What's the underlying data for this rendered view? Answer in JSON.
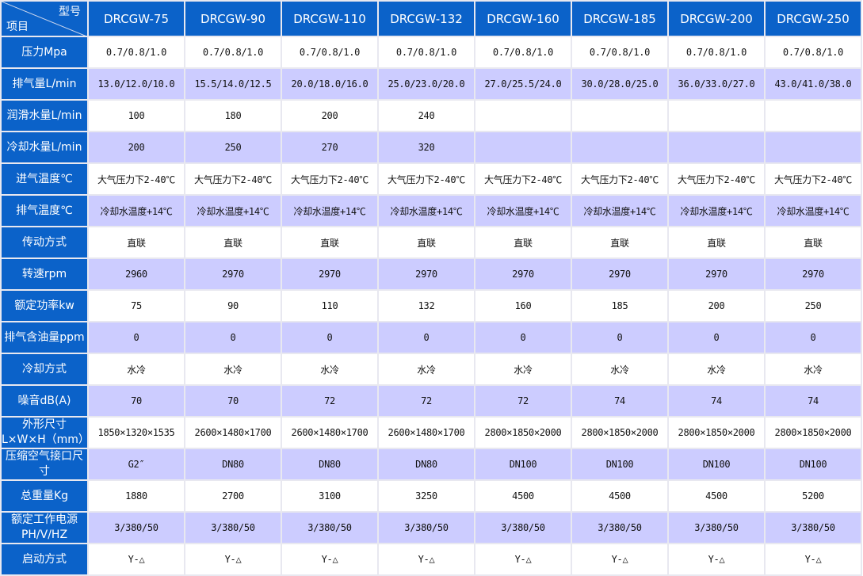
{
  "header": {
    "corner_top": "型号",
    "corner_bottom": "项目",
    "models": [
      "DRCGW-75",
      "DRCGW-90",
      "DRCGW-110",
      "DRCGW-132",
      "DRCGW-160",
      "DRCGW-185",
      "DRCGW-200",
      "DRCGW-250"
    ]
  },
  "colors": {
    "header_blue": "#0b62c9",
    "alt_row": "#ccccff"
  },
  "rows": [
    {
      "label": "压力Mpa",
      "values": [
        "0.7/0.8/1.0",
        "0.7/0.8/1.0",
        "0.7/0.8/1.0",
        "0.7/0.8/1.0",
        "0.7/0.8/1.0",
        "0.7/0.8/1.0",
        "0.7/0.8/1.0",
        "0.7/0.8/1.0"
      ]
    },
    {
      "label": "排气量L/min",
      "values": [
        "13.0/12.0/10.0",
        "15.5/14.0/12.5",
        "20.0/18.0/16.0",
        "25.0/23.0/20.0",
        "27.0/25.5/24.0",
        "30.0/28.0/25.0",
        "36.0/33.0/27.0",
        "43.0/41.0/38.0"
      ]
    },
    {
      "label": "润滑水量L/min",
      "values": [
        "100",
        "180",
        "200",
        "240",
        "",
        "",
        "",
        ""
      ]
    },
    {
      "label": "冷却水量L/min",
      "values": [
        "200",
        "250",
        "270",
        "320",
        "",
        "",
        "",
        ""
      ]
    },
    {
      "label": "进气温度℃",
      "values": [
        "大气压力下2-40℃",
        "大气压力下2-40℃",
        "大气压力下2-40℃",
        "大气压力下2-40℃",
        "大气压力下2-40℃",
        "大气压力下2-40℃",
        "大气压力下2-40℃",
        "大气压力下2-40℃"
      ]
    },
    {
      "label": "排气温度℃",
      "values": [
        "冷却水温度+14℃",
        "冷却水温度+14℃",
        "冷却水温度+14℃",
        "冷却水温度+14℃",
        "冷却水温度+14℃",
        "冷却水温度+14℃",
        "冷却水温度+14℃",
        "冷却水温度+14℃"
      ]
    },
    {
      "label": "传动方式",
      "values": [
        "直联",
        "直联",
        "直联",
        "直联",
        "直联",
        "直联",
        "直联",
        "直联"
      ]
    },
    {
      "label": "转速rpm",
      "values": [
        "2960",
        "2970",
        "2970",
        "2970",
        "2970",
        "2970",
        "2970",
        "2970"
      ]
    },
    {
      "label": "额定功率kw",
      "values": [
        "75",
        "90",
        "110",
        "132",
        "160",
        "185",
        "200",
        "250"
      ]
    },
    {
      "label": "排气含油量ppm",
      "values": [
        "0",
        "0",
        "0",
        "0",
        "0",
        "0",
        "0",
        "0"
      ]
    },
    {
      "label": "冷却方式",
      "values": [
        "水冷",
        "水冷",
        "水冷",
        "水冷",
        "水冷",
        "水冷",
        "水冷",
        "水冷"
      ]
    },
    {
      "label": "噪音dB(A)",
      "values": [
        "70",
        "70",
        "72",
        "72",
        "72",
        "74",
        "74",
        "74"
      ]
    },
    {
      "label": "外形尺寸L×W×H（mm）",
      "values": [
        "1850×1320×1535",
        "2600×1480×1700",
        "2600×1480×1700",
        "2600×1480×1700",
        "2800×1850×2000",
        "2800×1850×2000",
        "2800×1850×2000",
        "2800×1850×2000"
      ]
    },
    {
      "label": "压缩空气接口尺寸",
      "values": [
        "G2″",
        "DN80",
        "DN80",
        "DN80",
        "DN100",
        "DN100",
        "DN100",
        "DN100"
      ]
    },
    {
      "label": "总重量Kg",
      "values": [
        "1880",
        "2700",
        "3100",
        "3250",
        "4500",
        "4500",
        "4500",
        "5200"
      ]
    },
    {
      "label": "额定工作电源PH/V/HZ",
      "values": [
        "3/380/50",
        "3/380/50",
        "3/380/50",
        "3/380/50",
        "3/380/50",
        "3/380/50",
        "3/380/50",
        "3/380/50"
      ]
    },
    {
      "label": "启动方式",
      "values": [
        "Y-△",
        "Y-△",
        "Y-△",
        "Y-△",
        "Y-△",
        "Y-△",
        "Y-△",
        "Y-△"
      ]
    }
  ]
}
